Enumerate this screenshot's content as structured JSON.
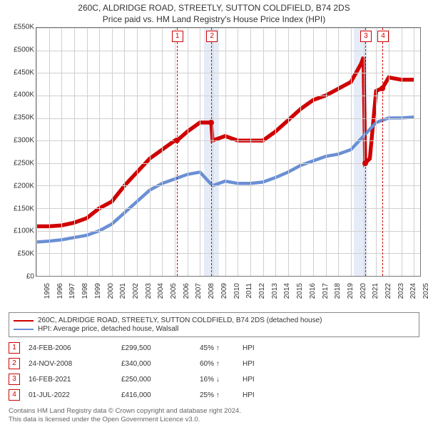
{
  "title_line1": "260C, ALDRIDGE ROAD, STREETLY, SUTTON COLDFIELD, B74 2DS",
  "title_line2": "Price paid vs. HM Land Registry's House Price Index (HPI)",
  "chart": {
    "type": "line",
    "background_color": "#ffffff",
    "grid_color": "#d0d0d0",
    "axis_color": "#777777",
    "band_color": "#e6ecf7",
    "x_min": 1995,
    "x_max": 2025.5,
    "y_min": 0,
    "y_max": 550000,
    "y_tick_step": 50000,
    "y_tick_labels": [
      "£0",
      "£50K",
      "£100K",
      "£150K",
      "£200K",
      "£250K",
      "£300K",
      "£350K",
      "£400K",
      "£450K",
      "£500K",
      "£550K"
    ],
    "x_ticks": [
      1995,
      1996,
      1997,
      1998,
      1999,
      2000,
      2001,
      2002,
      2003,
      2004,
      2005,
      2006,
      2007,
      2008,
      2009,
      2010,
      2011,
      2012,
      2013,
      2014,
      2015,
      2016,
      2017,
      2018,
      2019,
      2020,
      2021,
      2022,
      2023,
      2024,
      2025
    ],
    "recession_bands": [
      {
        "start": 2008.3,
        "end": 2009.5
      },
      {
        "start": 2020.2,
        "end": 2021.3
      }
    ],
    "series": [
      {
        "name": "property",
        "color": "#d00000",
        "width": 1.8,
        "legend_label": "260C, ALDRIDGE ROAD, STREETLY, SUTTON COLDFIELD, B74 2DS (detached house)",
        "points": [
          [
            1995,
            110000
          ],
          [
            1996,
            110000
          ],
          [
            1997,
            112000
          ],
          [
            1998,
            118000
          ],
          [
            1999,
            128000
          ],
          [
            2000,
            150000
          ],
          [
            2001,
            165000
          ],
          [
            2002,
            200000
          ],
          [
            2003,
            230000
          ],
          [
            2004,
            260000
          ],
          [
            2005,
            280000
          ],
          [
            2006,
            300000
          ],
          [
            2006.15,
            299500
          ],
          [
            2007,
            320000
          ],
          [
            2008,
            340000
          ],
          [
            2008.9,
            340000
          ],
          [
            2009,
            300000
          ],
          [
            2010,
            310000
          ],
          [
            2011,
            300000
          ],
          [
            2012,
            300000
          ],
          [
            2013,
            300000
          ],
          [
            2014,
            320000
          ],
          [
            2015,
            345000
          ],
          [
            2016,
            370000
          ],
          [
            2017,
            390000
          ],
          [
            2018,
            400000
          ],
          [
            2019,
            415000
          ],
          [
            2020,
            430000
          ],
          [
            2020.8,
            470000
          ],
          [
            2021,
            485000
          ],
          [
            2021.13,
            250000
          ],
          [
            2021.5,
            260000
          ],
          [
            2022,
            410000
          ],
          [
            2022.5,
            416000
          ],
          [
            2023,
            440000
          ],
          [
            2024,
            435000
          ],
          [
            2025,
            435000
          ]
        ]
      },
      {
        "name": "hpi",
        "color": "#6a8fd4",
        "width": 1.5,
        "legend_label": "HPI: Average price, detached house, Walsall",
        "points": [
          [
            1995,
            75000
          ],
          [
            1996,
            77000
          ],
          [
            1997,
            80000
          ],
          [
            1998,
            85000
          ],
          [
            1999,
            90000
          ],
          [
            2000,
            100000
          ],
          [
            2001,
            115000
          ],
          [
            2002,
            140000
          ],
          [
            2003,
            165000
          ],
          [
            2004,
            190000
          ],
          [
            2005,
            205000
          ],
          [
            2006,
            215000
          ],
          [
            2007,
            225000
          ],
          [
            2008,
            230000
          ],
          [
            2009,
            200000
          ],
          [
            2010,
            210000
          ],
          [
            2011,
            205000
          ],
          [
            2012,
            205000
          ],
          [
            2013,
            208000
          ],
          [
            2014,
            218000
          ],
          [
            2015,
            230000
          ],
          [
            2016,
            245000
          ],
          [
            2017,
            255000
          ],
          [
            2018,
            265000
          ],
          [
            2019,
            270000
          ],
          [
            2020,
            280000
          ],
          [
            2021,
            310000
          ],
          [
            2022,
            340000
          ],
          [
            2023,
            350000
          ],
          [
            2024,
            350000
          ],
          [
            2025,
            352000
          ]
        ]
      }
    ],
    "sale_markers": [
      {
        "n": "1",
        "x": 2006.15,
        "y": 299500,
        "label_y_offset": -20,
        "show_dot": true
      },
      {
        "n": "2",
        "x": 2008.9,
        "y": 340000,
        "label_y_offset": -20,
        "show_dot": true
      },
      {
        "n": "3",
        "x": 2021.13,
        "y": 250000,
        "label_y_offset": -20,
        "show_dot": true
      },
      {
        "n": "4",
        "x": 2022.5,
        "y": 416000,
        "label_y_offset": -20,
        "show_dot": true
      }
    ],
    "label_fontsize": 10
  },
  "legend": {
    "items": [
      {
        "color": "#d00000",
        "label": "260C, ALDRIDGE ROAD, STREETLY, SUTTON COLDFIELD, B74 2DS (detached house)"
      },
      {
        "color": "#6a8fd4",
        "label": "HPI: Average price, detached house, Walsall"
      }
    ]
  },
  "sales_table": {
    "rows": [
      {
        "n": "1",
        "date": "24-FEB-2006",
        "price": "£299,500",
        "pct": "45%",
        "dir": "↑",
        "vs": "HPI"
      },
      {
        "n": "2",
        "date": "24-NOV-2008",
        "price": "£340,000",
        "pct": "60%",
        "dir": "↑",
        "vs": "HPI"
      },
      {
        "n": "3",
        "date": "16-FEB-2021",
        "price": "£250,000",
        "pct": "16%",
        "dir": "↓",
        "vs": "HPI"
      },
      {
        "n": "4",
        "date": "01-JUL-2022",
        "price": "£416,000",
        "pct": "25%",
        "dir": "↑",
        "vs": "HPI"
      }
    ]
  },
  "footer_line1": "Contains HM Land Registry data © Crown copyright and database right 2024.",
  "footer_line2": "This data is licensed under the Open Government Licence v3.0."
}
